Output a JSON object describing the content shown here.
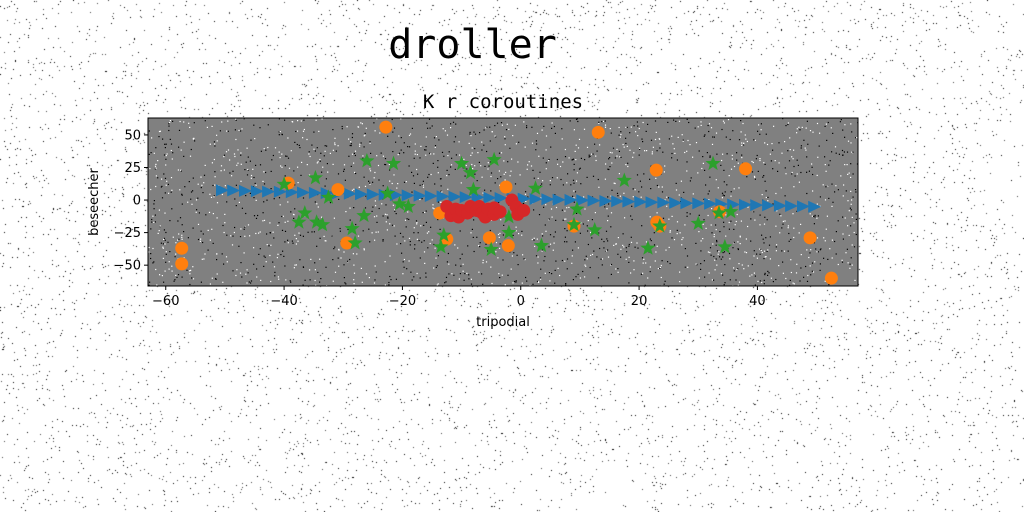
{
  "figure": {
    "suptitle": "droller"
  },
  "chart_data": {
    "type": "scatter",
    "title": "K r coroutines",
    "xlabel": "tripodial",
    "ylabel": "beseecher",
    "xlim": [
      -63,
      57
    ],
    "ylim": [
      -66,
      63
    ],
    "xticks": [
      -60,
      -40,
      -20,
      0,
      20,
      40
    ],
    "yticks": [
      -50,
      -25,
      0,
      25,
      50
    ],
    "axes_facecolor": "#808080",
    "grid": false,
    "series": [
      {
        "marker": "triangle-right",
        "color": "#1f77b4",
        "points": [
          [
            -50.5,
            7.5
          ],
          [
            -48.6,
            7.3
          ],
          [
            -46.6,
            7.0
          ],
          [
            -44.6,
            6.8
          ],
          [
            -42.7,
            6.5
          ],
          [
            -40.7,
            6.3
          ],
          [
            -38.7,
            6.0
          ],
          [
            -36.8,
            5.8
          ],
          [
            -34.8,
            5.5
          ],
          [
            -32.8,
            5.3
          ],
          [
            -30.9,
            5.0
          ],
          [
            -28.9,
            4.8
          ],
          [
            -27.0,
            4.5
          ],
          [
            -25.0,
            4.3
          ],
          [
            -23.0,
            4.0
          ],
          [
            -21.1,
            3.8
          ],
          [
            -19.1,
            3.6
          ],
          [
            -17.1,
            3.3
          ],
          [
            -15.2,
            3.1
          ],
          [
            -13.2,
            2.8
          ],
          [
            -11.2,
            2.6
          ],
          [
            -9.3,
            2.3
          ],
          [
            -7.3,
            2.1
          ],
          [
            -5.3,
            1.8
          ],
          [
            -3.4,
            1.6
          ],
          [
            -1.4,
            1.3
          ],
          [
            0.5,
            1.1
          ],
          [
            2.5,
            0.8
          ],
          [
            4.5,
            0.6
          ],
          [
            6.4,
            0.3
          ],
          [
            8.4,
            0.1
          ],
          [
            10.4,
            -0.2
          ],
          [
            12.3,
            -0.4
          ],
          [
            14.3,
            -0.7
          ],
          [
            16.3,
            -0.9
          ],
          [
            18.2,
            -1.2
          ],
          [
            20.2,
            -1.4
          ],
          [
            22.1,
            -1.7
          ],
          [
            24.1,
            -1.9
          ],
          [
            26.1,
            -2.2
          ],
          [
            28.0,
            -2.4
          ],
          [
            30.0,
            -2.6
          ],
          [
            32.0,
            -2.9
          ],
          [
            33.9,
            -3.1
          ],
          [
            35.9,
            -3.4
          ],
          [
            37.9,
            -3.6
          ],
          [
            39.8,
            -3.9
          ],
          [
            41.8,
            -4.1
          ],
          [
            43.8,
            -4.4
          ],
          [
            45.7,
            -4.6
          ],
          [
            47.7,
            -4.9
          ],
          [
            49.6,
            -5.1
          ]
        ]
      },
      {
        "marker": "circle",
        "color": "#ff7f0e",
        "points": [
          [
            -22.8,
            56
          ],
          [
            13.1,
            52
          ],
          [
            -39.3,
            13
          ],
          [
            -30.9,
            8
          ],
          [
            -2.5,
            10
          ],
          [
            22.9,
            23
          ],
          [
            38,
            24
          ],
          [
            -13.7,
            -10
          ],
          [
            -12.5,
            -30
          ],
          [
            -5.3,
            -29
          ],
          [
            -2.1,
            -35
          ],
          [
            -29.4,
            -33
          ],
          [
            9.0,
            -20
          ],
          [
            23,
            -17
          ],
          [
            23.5,
            -20
          ],
          [
            33.6,
            -9
          ],
          [
            48.9,
            -29
          ],
          [
            -57.3,
            -37
          ],
          [
            -57.3,
            -49
          ],
          [
            52.5,
            -60
          ]
        ]
      },
      {
        "marker": "star",
        "color": "#2ca02c",
        "points": [
          [
            -26,
            30
          ],
          [
            -21.5,
            28
          ],
          [
            -10.0,
            28
          ],
          [
            -8.5,
            21
          ],
          [
            -4.5,
            31
          ],
          [
            -40,
            12
          ],
          [
            -34.7,
            17
          ],
          [
            -32.5,
            2
          ],
          [
            -36.5,
            -10
          ],
          [
            -37.5,
            -17
          ],
          [
            -34.5,
            -17
          ],
          [
            -33.5,
            -19
          ],
          [
            -26.5,
            -12
          ],
          [
            -28.5,
            -22
          ],
          [
            -28,
            -33
          ],
          [
            -22.5,
            5
          ],
          [
            -20.5,
            -3
          ],
          [
            -19,
            -5
          ],
          [
            -13,
            -27
          ],
          [
            -13.5,
            -36
          ],
          [
            -8,
            8
          ],
          [
            -5,
            -38
          ],
          [
            -2,
            -13
          ],
          [
            -2,
            -25
          ],
          [
            2.5,
            9
          ],
          [
            3.5,
            -35
          ],
          [
            9.5,
            -7
          ],
          [
            9,
            -19
          ],
          [
            12.5,
            -23
          ],
          [
            17.5,
            15
          ],
          [
            21.5,
            -37
          ],
          [
            23.5,
            -20
          ],
          [
            30,
            -18
          ],
          [
            32.5,
            28
          ],
          [
            33.5,
            -10
          ],
          [
            34.5,
            -36
          ],
          [
            35.5,
            -9
          ]
        ]
      },
      {
        "marker": "circle",
        "color": "#d62728",
        "points": [
          [
            -12.5,
            -5
          ],
          [
            -11.8,
            -12
          ],
          [
            -11,
            -7
          ],
          [
            -10.5,
            -13
          ],
          [
            -10,
            -8
          ],
          [
            -9,
            -10
          ],
          [
            -8.5,
            -5
          ],
          [
            -7.5,
            -8
          ],
          [
            -7,
            -5
          ],
          [
            -6.5,
            -10
          ],
          [
            -6,
            -13
          ],
          [
            -5.5,
            -7
          ],
          [
            -4.5,
            -11
          ],
          [
            -4.5,
            -6
          ],
          [
            -3.5,
            -9
          ],
          [
            -1.5,
            0
          ],
          [
            -0.8,
            -5
          ],
          [
            -0.5,
            -11
          ],
          [
            0.5,
            -8
          ]
        ]
      }
    ]
  }
}
